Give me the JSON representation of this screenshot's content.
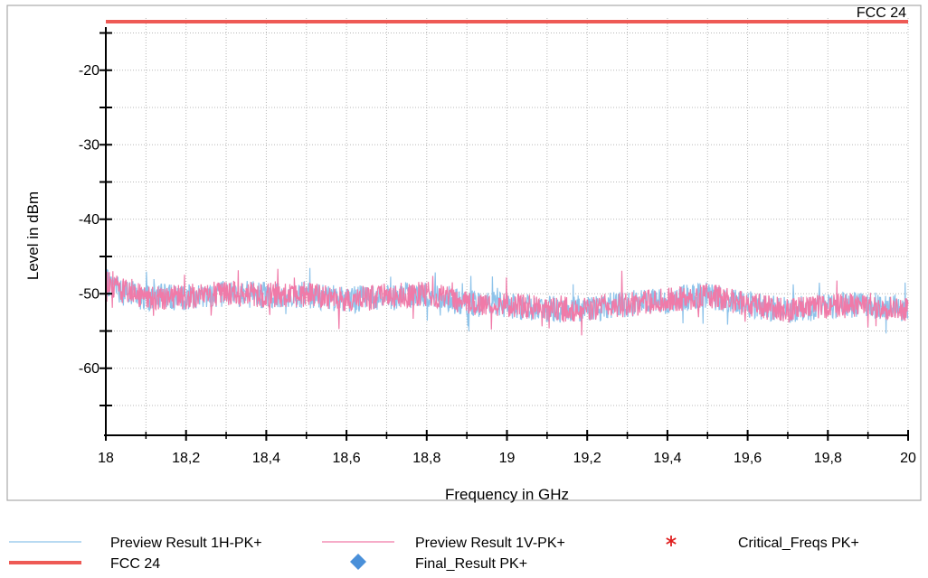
{
  "chart_data": {
    "type": "line",
    "xlabel": "Frequency in GHz",
    "ylabel": "Level in dBm",
    "xlim": [
      18,
      20
    ],
    "ylim": [
      -69,
      -13
    ],
    "x_ticks": [
      18,
      18.2,
      18.4,
      18.6,
      18.8,
      19,
      19.2,
      19.4,
      19.6,
      19.8,
      20
    ],
    "x_tick_labels": [
      "18",
      "18,2",
      "18,4",
      "18,6",
      "18,8",
      "19",
      "19,2",
      "19,4",
      "19,6",
      "19,8",
      "20"
    ],
    "y_ticks": [
      -20,
      -30,
      -40,
      -50,
      -60
    ],
    "y_tick_labels": [
      "-20",
      "-30",
      "-40",
      "-50",
      "-60"
    ],
    "grid": true,
    "colors": {
      "preview_1h": "#8ec3ea",
      "preview_1v": "#f07aa8",
      "limit": "#ee5a55",
      "critical": "#e02020",
      "final": "#4a90d9",
      "grid": "#b8b8b8",
      "frame": "#a9a9a9"
    },
    "limit_line": {
      "name": "FCC 24",
      "label": "FCC 24",
      "y": -13
    },
    "series": [
      {
        "name": "Preview Result 1H-PK+",
        "x": [
          18,
          18.05,
          18.1,
          18.2,
          18.3,
          18.4,
          18.5,
          18.6,
          18.7,
          18.8,
          18.9,
          19,
          19.1,
          19.2,
          19.3,
          19.4,
          19.5,
          19.6,
          19.7,
          19.8,
          19.9,
          20
        ],
        "values": [
          -48.5,
          -49.8,
          -50.5,
          -50.4,
          -49.9,
          -50.2,
          -50.1,
          -50.9,
          -50.3,
          -50,
          -51.3,
          -51.5,
          -52.1,
          -52,
          -51.4,
          -50.9,
          -50.2,
          -51.4,
          -52.2,
          -51.7,
          -51.5,
          -52
        ]
      },
      {
        "name": "Preview Result 1V-PK+",
        "x": [
          18,
          18.05,
          18.1,
          18.2,
          18.3,
          18.4,
          18.5,
          18.6,
          18.7,
          18.8,
          18.9,
          19,
          19.1,
          19.2,
          19.3,
          19.4,
          19.5,
          19.6,
          19.7,
          19.8,
          19.9,
          20
        ],
        "values": [
          -48.5,
          -49.8,
          -50.5,
          -50.4,
          -49.9,
          -50.2,
          -50.1,
          -50.9,
          -50.3,
          -50,
          -51.3,
          -51.5,
          -52.1,
          -52,
          -51.4,
          -50.9,
          -50.2,
          -51.4,
          -52.2,
          -51.7,
          -51.5,
          -52
        ]
      },
      {
        "name": "Critical_Freqs PK+",
        "x": [],
        "values": []
      },
      {
        "name": "Final_Result PK+",
        "x": [],
        "values": []
      }
    ],
    "legend": {
      "placement": "bottom",
      "entries": [
        {
          "label": "Preview Result 1H-PK+",
          "marker": "line",
          "color": "#8ec3ea"
        },
        {
          "label": "Preview Result 1V-PK+",
          "marker": "line",
          "color": "#f07aa8"
        },
        {
          "label": "Critical_Freqs PK+",
          "marker": "asterisk",
          "color": "#e02020"
        },
        {
          "label": "FCC 24",
          "marker": "thick-line",
          "color": "#ee5a55"
        },
        {
          "label": "Final_Result PK+",
          "marker": "diamond",
          "color": "#4a90d9"
        }
      ]
    }
  }
}
